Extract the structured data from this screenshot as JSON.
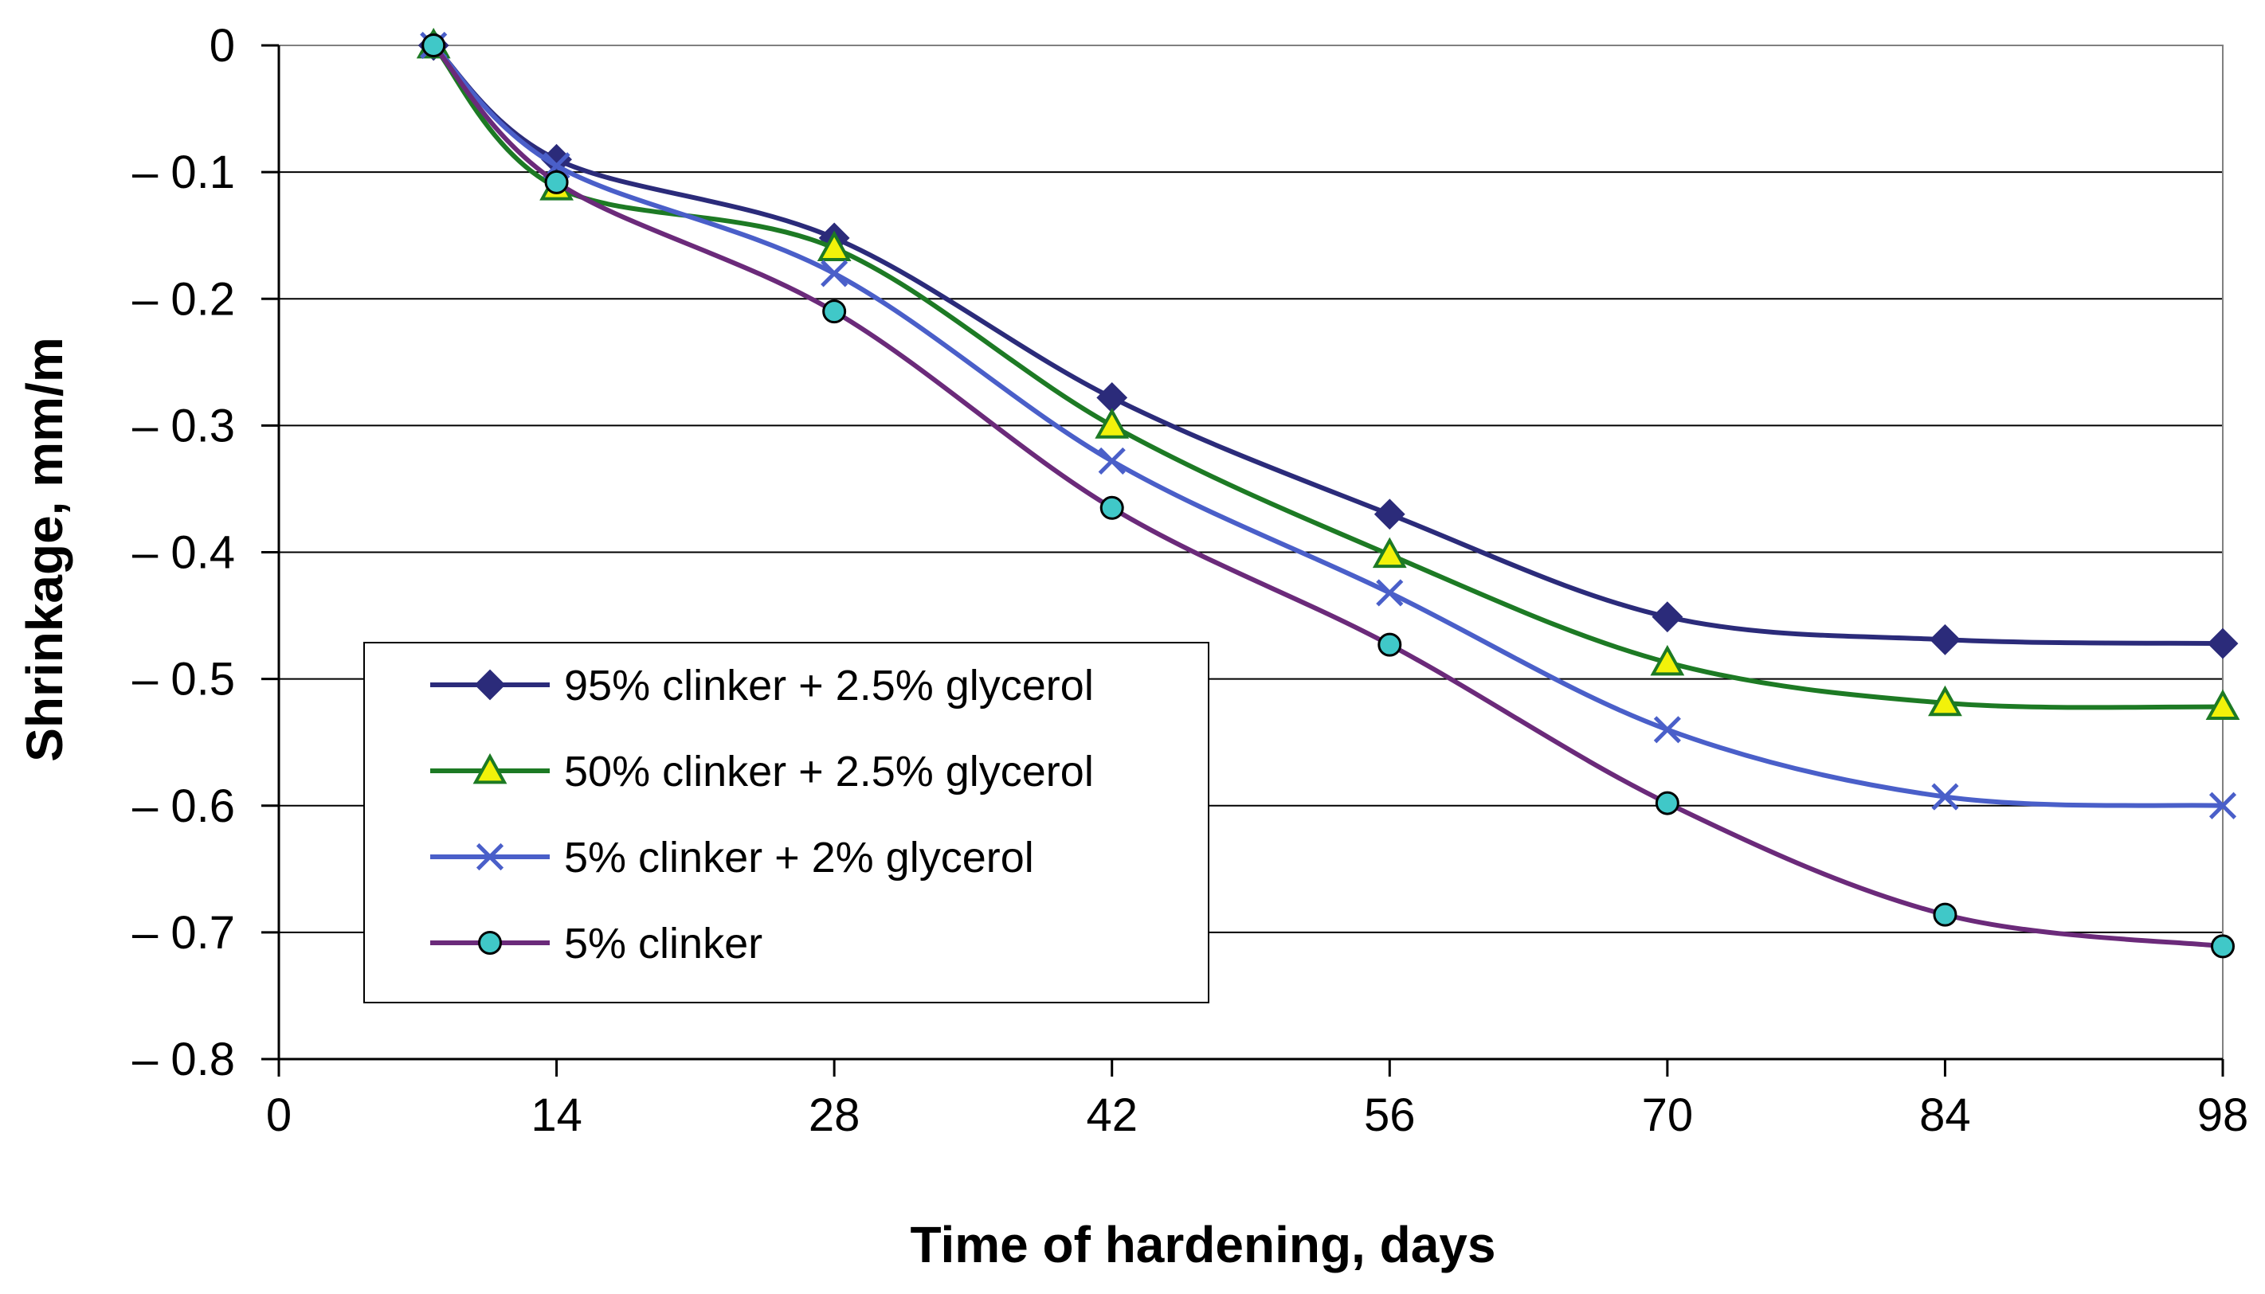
{
  "chart_data": {
    "type": "line",
    "title": "",
    "xlabel": "Time of hardening, days",
    "ylabel": "Shrinkage, mm/m",
    "xlim": [
      0,
      98
    ],
    "ylim": [
      -0.8,
      0
    ],
    "x_ticks": [
      0,
      14,
      28,
      42,
      56,
      70,
      84,
      98
    ],
    "x_tick_labels": [
      "0",
      "14",
      "28",
      "42",
      "56",
      "70",
      "84",
      "98"
    ],
    "y_ticks": [
      0,
      -0.1,
      -0.2,
      -0.3,
      -0.4,
      -0.5,
      -0.6,
      -0.7,
      -0.8
    ],
    "y_tick_labels": [
      "0",
      "– 0.1",
      "– 0.2",
      "– 0.3",
      "– 0.4",
      "– 0.5",
      "– 0.6",
      "– 0.7",
      "– 0.8"
    ],
    "grid": "horizontal",
    "legend_position": "bottom-left",
    "x": [
      7.8,
      14,
      28,
      42,
      56,
      70,
      84,
      98
    ],
    "series": [
      {
        "name": "95% clinker + 2.5% glycerol",
        "color": "#2b2b7a",
        "marker": "diamond",
        "values": [
          0,
          -0.09,
          -0.152,
          -0.278,
          -0.37,
          -0.451,
          -0.469,
          -0.472
        ]
      },
      {
        "name": "50% clinker + 2.5% glycerol",
        "color": "#1d7a24",
        "marker": "triangle",
        "marker_fill": "#f2f20a",
        "values": [
          0,
          -0.112,
          -0.16,
          -0.3,
          -0.402,
          -0.487,
          -0.519,
          -0.522
        ]
      },
      {
        "name": "5% clinker + 2% glycerol",
        "color": "#4a5fc9",
        "marker": "x",
        "values": [
          0,
          -0.095,
          -0.18,
          -0.328,
          -0.432,
          -0.54,
          -0.593,
          -0.6
        ]
      },
      {
        "name": "5% clinker",
        "color": "#6b2a7a",
        "marker": "circle",
        "marker_fill": "#40c8c8",
        "values": [
          0,
          -0.108,
          -0.21,
          -0.365,
          -0.473,
          -0.598,
          -0.686,
          -0.711
        ]
      }
    ]
  }
}
